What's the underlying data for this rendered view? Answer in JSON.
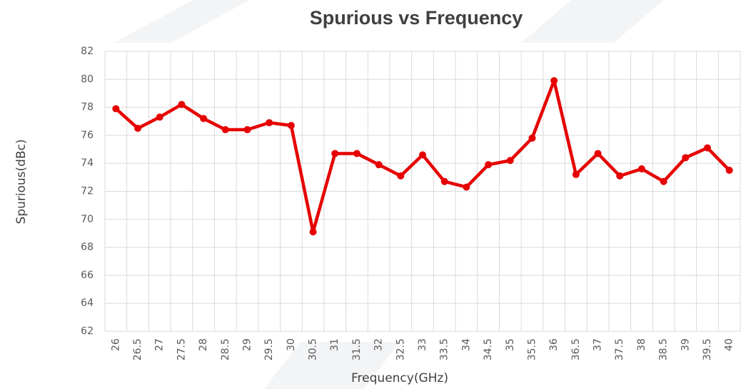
{
  "chart_data": {
    "type": "line",
    "title": "Spurious vs Frequency",
    "xlabel": "Frequency(GHz)",
    "ylabel": "Spurious(dBc)",
    "categories": [
      "26",
      "26.5",
      "27",
      "27.5",
      "28",
      "28.5",
      "29",
      "29.5",
      "30",
      "30.5",
      "31",
      "31.5",
      "32",
      "32.5",
      "33",
      "33.5",
      "34",
      "34.5",
      "35",
      "35.5",
      "36",
      "36.5",
      "37",
      "37.5",
      "38",
      "38.5",
      "39",
      "39.5",
      "40"
    ],
    "series": [
      {
        "name": "Spurious",
        "color": "#e60000",
        "values": [
          77.9,
          76.5,
          77.3,
          78.2,
          77.2,
          76.4,
          76.4,
          76.9,
          76.7,
          69.1,
          74.7,
          74.7,
          73.9,
          73.1,
          74.6,
          72.7,
          72.3,
          73.9,
          74.2,
          75.8,
          79.9,
          73.2,
          74.7,
          73.1,
          73.6,
          72.7,
          74.4,
          75.1,
          73.5
        ]
      }
    ],
    "ylim": [
      62,
      82
    ],
    "yticks": [
      62,
      64,
      66,
      68,
      70,
      72,
      74,
      76,
      78,
      80,
      82
    ],
    "grid": true
  }
}
